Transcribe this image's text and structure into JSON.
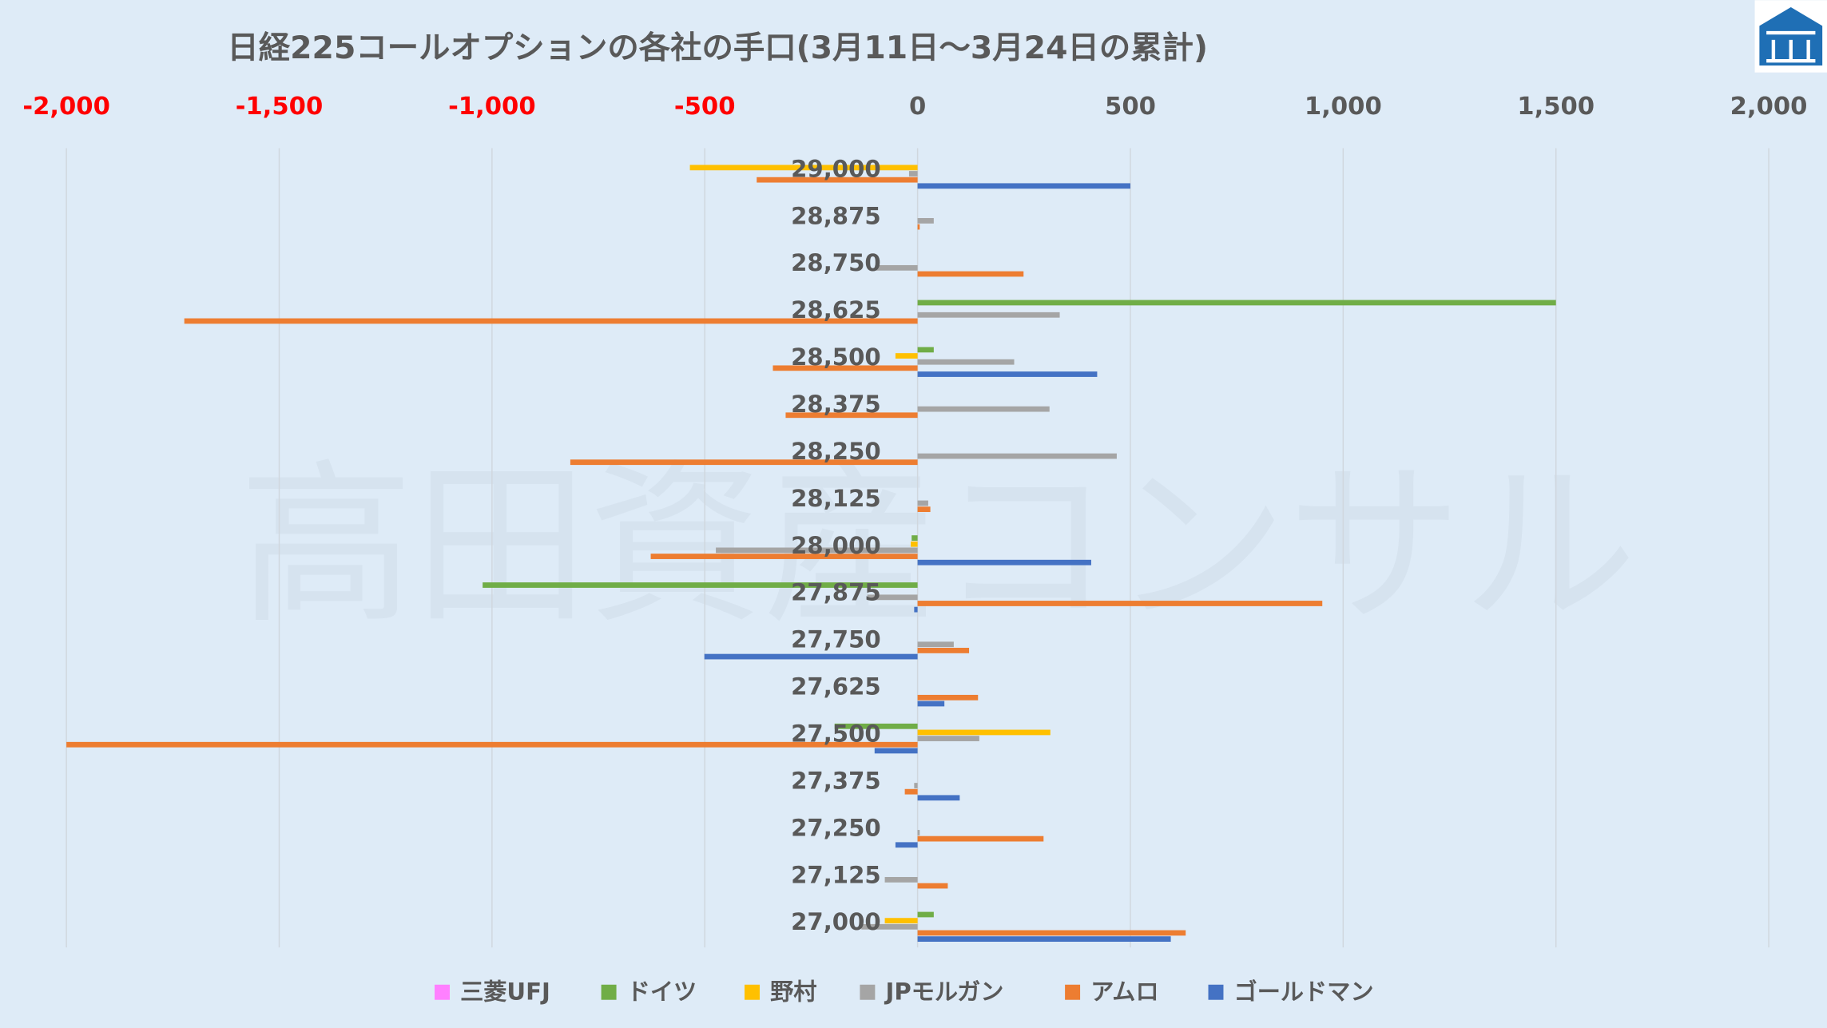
{
  "chart_data": {
    "type": "bar",
    "orientation": "horizontal",
    "title": "日経225コールオプションの各社の手口(3月11日～3月24日の累計)",
    "xlim": [
      -2000,
      2000
    ],
    "xticks": [
      -2000,
      -1500,
      -1000,
      -500,
      0,
      500,
      1000,
      1500,
      2000
    ],
    "xtick_labels": [
      "-2,000",
      "-1,500",
      "-1,000",
      "-500",
      "0",
      "500",
      "1,000",
      "1,500",
      "2,000"
    ],
    "negative_tick_color": "#ff0000",
    "positive_tick_color": "#595959",
    "grid": true,
    "legend_position": "bottom",
    "categories": [
      "29,000",
      "28,875",
      "28,750",
      "28,625",
      "28,500",
      "28,375",
      "28,250",
      "28,125",
      "28,000",
      "27,875",
      "27,750",
      "27,625",
      "27,500",
      "27,375",
      "27,250",
      "27,125",
      "27,000"
    ],
    "series": [
      {
        "name": "三菱UFJ",
        "color": "#ff80ff",
        "values": [
          0,
          0,
          0,
          0,
          0,
          0,
          0,
          0,
          0,
          0,
          0,
          0,
          0,
          0,
          0,
          0,
          0
        ]
      },
      {
        "name": "ドイツ",
        "color": "#70ad47",
        "values": [
          0,
          0,
          0,
          1500,
          38,
          0,
          0,
          0,
          -14,
          -1022,
          0,
          0,
          -195,
          0,
          0,
          0,
          38
        ]
      },
      {
        "name": "野村",
        "color": "#ffc000",
        "values": [
          -535,
          0,
          0,
          0,
          -52,
          0,
          0,
          0,
          -16,
          0,
          0,
          0,
          312,
          0,
          0,
          0,
          -77
        ]
      },
      {
        "name": "JPモルガン",
        "color": "#a5a5a5",
        "values": [
          -20,
          38,
          -100,
          334,
          227,
          310,
          468,
          25,
          -474,
          -118,
          85,
          0,
          145,
          -8,
          5,
          -77,
          -132
        ]
      },
      {
        "name": "アムロ",
        "color": "#ed7d31",
        "values": [
          -378,
          5,
          249,
          -1723,
          -340,
          -310,
          -816,
          30,
          -627,
          951,
          121,
          142,
          -2000,
          -30,
          296,
          71,
          630
        ]
      },
      {
        "name": "ゴールドマン",
        "color": "#4472c4",
        "values": [
          500,
          0,
          0,
          0,
          422,
          0,
          0,
          0,
          408,
          -8,
          -501,
          63,
          -101,
          99,
          -52,
          0,
          595
        ]
      }
    ]
  },
  "watermark": "高田資産コンサル",
  "logo": {
    "color": "#1f6fb5"
  }
}
